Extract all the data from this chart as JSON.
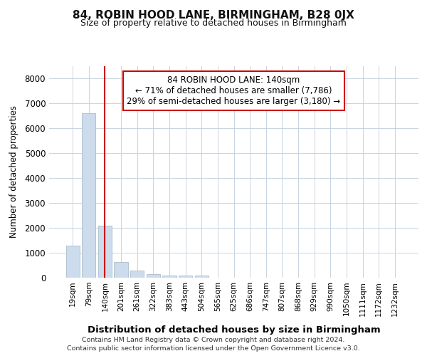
{
  "title": "84, ROBIN HOOD LANE, BIRMINGHAM, B28 0JX",
  "subtitle": "Size of property relative to detached houses in Birmingham",
  "xlabel": "Distribution of detached houses by size in Birmingham",
  "ylabel": "Number of detached properties",
  "annotation_line1": "84 ROBIN HOOD LANE: 140sqm",
  "annotation_line2": "← 71% of detached houses are smaller (7,786)",
  "annotation_line3": "29% of semi-detached houses are larger (3,180) →",
  "footer_line1": "Contains HM Land Registry data © Crown copyright and database right 2024.",
  "footer_line2": "Contains public sector information licensed under the Open Government Licence v3.0.",
  "property_size_index": 2,
  "bar_categories": [
    "19sqm",
    "79sqm",
    "140sqm",
    "201sqm",
    "261sqm",
    "322sqm",
    "383sqm",
    "443sqm",
    "504sqm",
    "565sqm",
    "625sqm",
    "686sqm",
    "747sqm",
    "807sqm",
    "868sqm",
    "929sqm",
    "990sqm",
    "1050sqm",
    "1111sqm",
    "1172sqm",
    "1232sqm"
  ],
  "bar_values": [
    1300,
    6600,
    2100,
    630,
    300,
    150,
    100,
    80,
    80,
    0,
    0,
    0,
    0,
    0,
    0,
    0,
    0,
    0,
    0,
    0,
    0
  ],
  "bar_color": "#ccdcec",
  "bar_edge_color": "#aabccc",
  "red_line_color": "#cc0000",
  "grid_color": "#c8d4e0",
  "background_color": "#ffffff",
  "ylim": [
    0,
    8500
  ],
  "yticks": [
    0,
    1000,
    2000,
    3000,
    4000,
    5000,
    6000,
    7000,
    8000
  ]
}
